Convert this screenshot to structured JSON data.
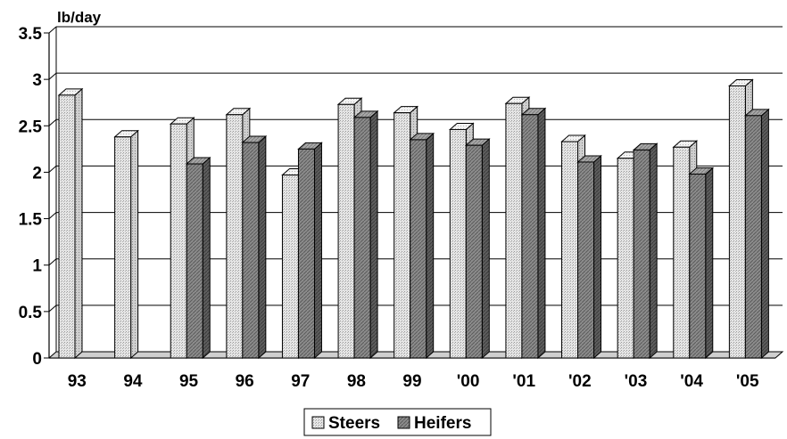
{
  "chart_data": {
    "type": "bar",
    "unit_label": "lb/day",
    "categories": [
      "93",
      "94",
      "95",
      "96",
      "97",
      "98",
      "99",
      "'00",
      "'01",
      "'02",
      "'03",
      "'04",
      "'05"
    ],
    "series": [
      {
        "name": "Steers",
        "values": [
          2.83,
          2.38,
          2.52,
          2.62,
          1.97,
          2.73,
          2.64,
          2.46,
          2.74,
          2.33,
          2.15,
          2.27,
          2.93
        ]
      },
      {
        "name": "Heifers",
        "values": [
          null,
          null,
          2.09,
          2.32,
          2.25,
          2.59,
          2.35,
          2.29,
          2.62,
          2.11,
          2.24,
          1.98,
          2.61
        ]
      }
    ],
    "ylim": [
      0,
      3.5
    ],
    "yticks": [
      "0",
      "0.5",
      "1",
      "1.5",
      "2",
      "2.5",
      "3",
      "3.5"
    ],
    "grid": true,
    "legend_position": "bottom",
    "colors": {
      "steers": "#e8e8e8",
      "heifers": "#8a8a8a",
      "grid": "#000000"
    }
  }
}
